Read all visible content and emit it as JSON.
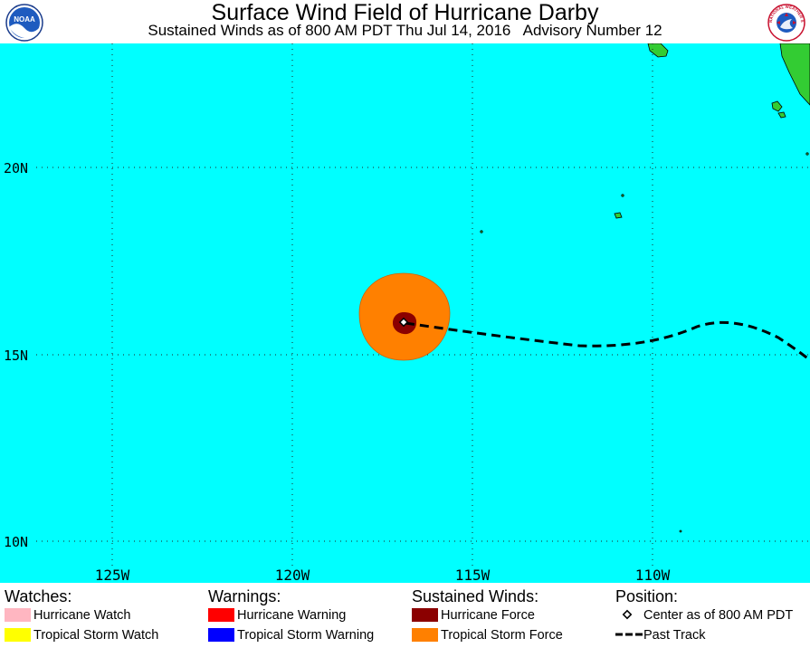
{
  "header": {
    "title": "Surface Wind Field of Hurricane Darby",
    "subtitle": "Sustained Winds as of 800 AM PDT Thu Jul 14, 2016   Advisory Number 12",
    "left_logo": {
      "text": "NOAA",
      "icon": "noaa-logo-icon"
    },
    "right_logo": {
      "text": "NATIONAL WEATHER SERVICE",
      "icon": "nws-logo-icon"
    }
  },
  "map": {
    "ocean_color": "#00ffff",
    "land_color": "#33cc33",
    "lat_labels": [
      "20N",
      "15N",
      "10N"
    ],
    "lon_labels": [
      "125W",
      "120W",
      "115W",
      "110W"
    ],
    "storm": {
      "center_lat": 16.0,
      "center_lon": 116.9,
      "tropical_storm_force_color": "#ff8000",
      "hurricane_force_color": "#8b0000"
    }
  },
  "legend": {
    "watches": {
      "heading": "Watches:",
      "items": [
        {
          "label": "Hurricane Watch",
          "color": "#ffb6c1"
        },
        {
          "label": "Tropical Storm Watch",
          "color": "#ffff00"
        }
      ]
    },
    "warnings": {
      "heading": "Warnings:",
      "items": [
        {
          "label": "Hurricane Warning",
          "color": "#ff0000"
        },
        {
          "label": "Tropical Storm Warning",
          "color": "#0000ff"
        }
      ]
    },
    "winds": {
      "heading": "Sustained Winds:",
      "items": [
        {
          "label": "Hurricane Force",
          "color": "#8b0000"
        },
        {
          "label": "Tropical Storm Force",
          "color": "#ff8000"
        }
      ]
    },
    "position": {
      "heading": "Position:",
      "items": [
        {
          "label": "Center as of 800 AM PDT",
          "icon": "diamond-icon"
        },
        {
          "label": "Past Track",
          "icon": "dashed-line-icon"
        }
      ]
    }
  }
}
